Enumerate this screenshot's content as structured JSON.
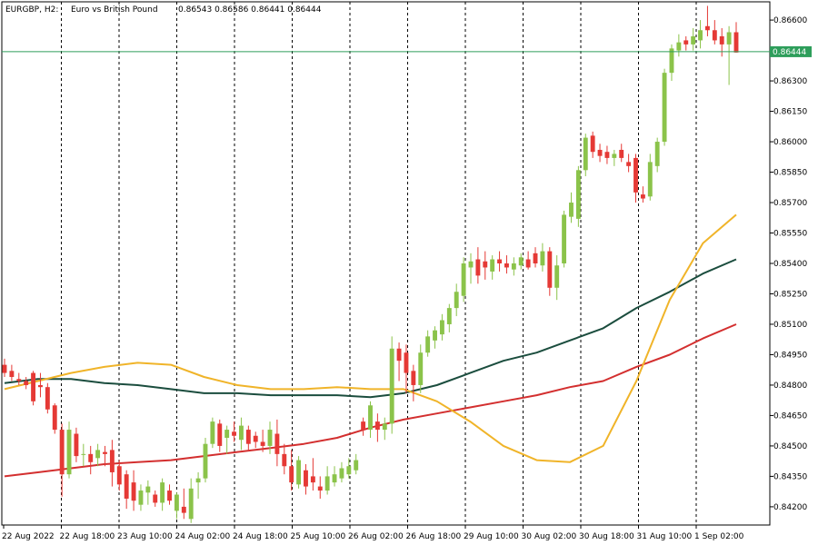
{
  "header": {
    "symbol": "EURGBP, H2:",
    "description": "Euro vs British Pound",
    "ohlc": "0.86543 0.86586 0.86441 0.86444"
  },
  "colors": {
    "bull": "#8bc34a",
    "bear": "#e53935",
    "ma_fast": "#f0b429",
    "ma_mid": "#1b4d3e",
    "ma_slow": "#d32f2f",
    "price_line": "#2e9e5b",
    "grid": "#000000"
  },
  "chart_data": {
    "type": "candlestick",
    "ylim": [
      0.8411,
      0.8669
    ],
    "y_ticks": [
      "0.86600",
      "0.86444",
      "0.86300",
      "0.86150",
      "0.86000",
      "0.85850",
      "0.85700",
      "0.85550",
      "0.85400",
      "0.85250",
      "0.85100",
      "0.84950",
      "0.84800",
      "0.84650",
      "0.84500",
      "0.84350",
      "0.84200"
    ],
    "current_price": "0.86444",
    "x_ticks": [
      "22 Aug 2022",
      "22 Aug 18:00",
      "23 Aug 10:00",
      "24 Aug 02:00",
      "24 Aug 18:00",
      "25 Aug 10:00",
      "26 Aug 02:00",
      "26 Aug 18:00",
      "29 Aug 10:00",
      "30 Aug 02:00",
      "30 Aug 18:00",
      "31 Aug 10:00",
      "1 Sep 02:00"
    ],
    "candles": [
      {
        "o": 0.849,
        "h": 0.8493,
        "l": 0.8484,
        "c": 0.8486
      },
      {
        "o": 0.8487,
        "h": 0.849,
        "l": 0.8482,
        "c": 0.8484
      },
      {
        "o": 0.8483,
        "h": 0.8486,
        "l": 0.848,
        "c": 0.8482
      },
      {
        "o": 0.8482,
        "h": 0.8484,
        "l": 0.8478,
        "c": 0.848
      },
      {
        "o": 0.8486,
        "h": 0.8487,
        "l": 0.847,
        "c": 0.8472
      },
      {
        "o": 0.848,
        "h": 0.8486,
        "l": 0.8474,
        "c": 0.8479
      },
      {
        "o": 0.8479,
        "h": 0.8481,
        "l": 0.8466,
        "c": 0.8468
      },
      {
        "o": 0.847,
        "h": 0.8471,
        "l": 0.8456,
        "c": 0.8458
      },
      {
        "o": 0.8458,
        "h": 0.8461,
        "l": 0.8425,
        "c": 0.8436
      },
      {
        "o": 0.8436,
        "h": 0.8462,
        "l": 0.8434,
        "c": 0.8458
      },
      {
        "o": 0.8456,
        "h": 0.8459,
        "l": 0.8442,
        "c": 0.8445
      },
      {
        "o": 0.8446,
        "h": 0.8451,
        "l": 0.844,
        "c": 0.8446
      },
      {
        "o": 0.8446,
        "h": 0.845,
        "l": 0.8436,
        "c": 0.8442
      },
      {
        "o": 0.8444,
        "h": 0.8451,
        "l": 0.844,
        "c": 0.8448
      },
      {
        "o": 0.8447,
        "h": 0.845,
        "l": 0.844,
        "c": 0.8446
      },
      {
        "o": 0.8448,
        "h": 0.8453,
        "l": 0.843,
        "c": 0.8437
      },
      {
        "o": 0.844,
        "h": 0.8443,
        "l": 0.8428,
        "c": 0.8431
      },
      {
        "o": 0.8436,
        "h": 0.8438,
        "l": 0.8419,
        "c": 0.8424
      },
      {
        "o": 0.8432,
        "h": 0.8438,
        "l": 0.8418,
        "c": 0.8423
      },
      {
        "o": 0.8421,
        "h": 0.8431,
        "l": 0.8418,
        "c": 0.8428
      },
      {
        "o": 0.8427,
        "h": 0.8433,
        "l": 0.8421,
        "c": 0.843
      },
      {
        "o": 0.8426,
        "h": 0.8428,
        "l": 0.842,
        "c": 0.8422
      },
      {
        "o": 0.8422,
        "h": 0.8434,
        "l": 0.8418,
        "c": 0.8432
      },
      {
        "o": 0.8428,
        "h": 0.8431,
        "l": 0.8421,
        "c": 0.8423
      },
      {
        "o": 0.8418,
        "h": 0.8427,
        "l": 0.8414,
        "c": 0.8426
      },
      {
        "o": 0.842,
        "h": 0.8429,
        "l": 0.8414,
        "c": 0.8417
      },
      {
        "o": 0.8414,
        "h": 0.8434,
        "l": 0.8412,
        "c": 0.8429
      },
      {
        "o": 0.8432,
        "h": 0.8437,
        "l": 0.8424,
        "c": 0.8434
      },
      {
        "o": 0.8434,
        "h": 0.8454,
        "l": 0.8432,
        "c": 0.8451
      },
      {
        "o": 0.8451,
        "h": 0.8464,
        "l": 0.8449,
        "c": 0.8462
      },
      {
        "o": 0.8461,
        "h": 0.8463,
        "l": 0.8447,
        "c": 0.845
      },
      {
        "o": 0.8454,
        "h": 0.846,
        "l": 0.8446,
        "c": 0.8458
      },
      {
        "o": 0.8457,
        "h": 0.8462,
        "l": 0.8452,
        "c": 0.8455
      },
      {
        "o": 0.8453,
        "h": 0.8464,
        "l": 0.8448,
        "c": 0.846
      },
      {
        "o": 0.8458,
        "h": 0.846,
        "l": 0.8448,
        "c": 0.8451
      },
      {
        "o": 0.8455,
        "h": 0.8457,
        "l": 0.8449,
        "c": 0.8452
      },
      {
        "o": 0.8452,
        "h": 0.8458,
        "l": 0.8447,
        "c": 0.845
      },
      {
        "o": 0.845,
        "h": 0.8462,
        "l": 0.8446,
        "c": 0.8458
      },
      {
        "o": 0.8456,
        "h": 0.8463,
        "l": 0.844,
        "c": 0.8446
      },
      {
        "o": 0.8446,
        "h": 0.8451,
        "l": 0.8436,
        "c": 0.844
      },
      {
        "o": 0.844,
        "h": 0.8448,
        "l": 0.8428,
        "c": 0.8432
      },
      {
        "o": 0.8431,
        "h": 0.8445,
        "l": 0.8429,
        "c": 0.8443
      },
      {
        "o": 0.8438,
        "h": 0.8441,
        "l": 0.8426,
        "c": 0.843
      },
      {
        "o": 0.8435,
        "h": 0.8444,
        "l": 0.8428,
        "c": 0.8432
      },
      {
        "o": 0.843,
        "h": 0.8435,
        "l": 0.8424,
        "c": 0.8428
      },
      {
        "o": 0.8428,
        "h": 0.844,
        "l": 0.8426,
        "c": 0.8435
      },
      {
        "o": 0.8432,
        "h": 0.844,
        "l": 0.843,
        "c": 0.8436
      },
      {
        "o": 0.8434,
        "h": 0.8442,
        "l": 0.8432,
        "c": 0.8439
      },
      {
        "o": 0.8436,
        "h": 0.8444,
        "l": 0.8434,
        "c": 0.844
      },
      {
        "o": 0.8438,
        "h": 0.8446,
        "l": 0.8436,
        "c": 0.8443
      },
      {
        "o": 0.8462,
        "h": 0.8464,
        "l": 0.8455,
        "c": 0.8458
      },
      {
        "o": 0.8458,
        "h": 0.8472,
        "l": 0.8454,
        "c": 0.847
      },
      {
        "o": 0.8462,
        "h": 0.8466,
        "l": 0.8452,
        "c": 0.8458
      },
      {
        "o": 0.8458,
        "h": 0.8464,
        "l": 0.8453,
        "c": 0.8461
      },
      {
        "o": 0.8461,
        "h": 0.8504,
        "l": 0.8456,
        "c": 0.8498
      },
      {
        "o": 0.8498,
        "h": 0.8501,
        "l": 0.8482,
        "c": 0.8492
      },
      {
        "o": 0.8496,
        "h": 0.85,
        "l": 0.8476,
        "c": 0.8486
      },
      {
        "o": 0.8487,
        "h": 0.849,
        "l": 0.8472,
        "c": 0.848
      },
      {
        "o": 0.848,
        "h": 0.85,
        "l": 0.8476,
        "c": 0.8496
      },
      {
        "o": 0.8496,
        "h": 0.8507,
        "l": 0.8494,
        "c": 0.8504
      },
      {
        "o": 0.8502,
        "h": 0.8509,
        "l": 0.8498,
        "c": 0.8507
      },
      {
        "o": 0.8505,
        "h": 0.8515,
        "l": 0.8502,
        "c": 0.8512
      },
      {
        "o": 0.851,
        "h": 0.852,
        "l": 0.8506,
        "c": 0.8518
      },
      {
        "o": 0.8518,
        "h": 0.853,
        "l": 0.8514,
        "c": 0.8526
      },
      {
        "o": 0.8524,
        "h": 0.8543,
        "l": 0.8521,
        "c": 0.854
      },
      {
        "o": 0.8538,
        "h": 0.8545,
        "l": 0.853,
        "c": 0.8541
      },
      {
        "o": 0.8542,
        "h": 0.8548,
        "l": 0.853,
        "c": 0.8534
      },
      {
        "o": 0.8541,
        "h": 0.8546,
        "l": 0.8532,
        "c": 0.8538
      },
      {
        "o": 0.8536,
        "h": 0.8544,
        "l": 0.8532,
        "c": 0.8542
      },
      {
        "o": 0.8542,
        "h": 0.8546,
        "l": 0.8536,
        "c": 0.854
      },
      {
        "o": 0.854,
        "h": 0.8544,
        "l": 0.8535,
        "c": 0.8538
      },
      {
        "o": 0.8537,
        "h": 0.8543,
        "l": 0.8534,
        "c": 0.854
      },
      {
        "o": 0.8539,
        "h": 0.8545,
        "l": 0.8537,
        "c": 0.8543
      },
      {
        "o": 0.8542,
        "h": 0.8546,
        "l": 0.8537,
        "c": 0.8538
      },
      {
        "o": 0.8545,
        "h": 0.8548,
        "l": 0.8538,
        "c": 0.854
      },
      {
        "o": 0.8539,
        "h": 0.855,
        "l": 0.8536,
        "c": 0.8546
      },
      {
        "o": 0.8546,
        "h": 0.8548,
        "l": 0.8524,
        "c": 0.8528
      },
      {
        "o": 0.8528,
        "h": 0.8544,
        "l": 0.8522,
        "c": 0.8539
      },
      {
        "o": 0.854,
        "h": 0.8566,
        "l": 0.8538,
        "c": 0.8564
      },
      {
        "o": 0.8563,
        "h": 0.8575,
        "l": 0.856,
        "c": 0.857
      },
      {
        "o": 0.8562,
        "h": 0.8588,
        "l": 0.8558,
        "c": 0.8586
      },
      {
        "o": 0.8586,
        "h": 0.8604,
        "l": 0.8583,
        "c": 0.8602
      },
      {
        "o": 0.8603,
        "h": 0.8605,
        "l": 0.8592,
        "c": 0.8595
      },
      {
        "o": 0.8596,
        "h": 0.8599,
        "l": 0.859,
        "c": 0.8593
      },
      {
        "o": 0.8595,
        "h": 0.8598,
        "l": 0.8589,
        "c": 0.8592
      },
      {
        "o": 0.8592,
        "h": 0.8596,
        "l": 0.8588,
        "c": 0.8594
      },
      {
        "o": 0.8596,
        "h": 0.8599,
        "l": 0.859,
        "c": 0.8592
      },
      {
        "o": 0.859,
        "h": 0.8594,
        "l": 0.8585,
        "c": 0.8588
      },
      {
        "o": 0.8592,
        "h": 0.8594,
        "l": 0.857,
        "c": 0.8575
      },
      {
        "o": 0.8574,
        "h": 0.8578,
        "l": 0.857,
        "c": 0.8572
      },
      {
        "o": 0.8573,
        "h": 0.8594,
        "l": 0.8571,
        "c": 0.859
      },
      {
        "o": 0.8588,
        "h": 0.8602,
        "l": 0.8585,
        "c": 0.86
      },
      {
        "o": 0.86,
        "h": 0.8636,
        "l": 0.8598,
        "c": 0.8634
      },
      {
        "o": 0.8634,
        "h": 0.8648,
        "l": 0.863,
        "c": 0.8646
      },
      {
        "o": 0.8645,
        "h": 0.8653,
        "l": 0.8642,
        "c": 0.8649
      },
      {
        "o": 0.865,
        "h": 0.8652,
        "l": 0.8645,
        "c": 0.8648
      },
      {
        "o": 0.8648,
        "h": 0.8656,
        "l": 0.8645,
        "c": 0.8652
      },
      {
        "o": 0.865,
        "h": 0.866,
        "l": 0.8646,
        "c": 0.8655
      },
      {
        "o": 0.8657,
        "h": 0.8667,
        "l": 0.8652,
        "c": 0.8655
      },
      {
        "o": 0.8655,
        "h": 0.866,
        "l": 0.8648,
        "c": 0.865
      },
      {
        "o": 0.8652,
        "h": 0.8656,
        "l": 0.8642,
        "c": 0.8648
      },
      {
        "o": 0.8648,
        "h": 0.8657,
        "l": 0.8628,
        "c": 0.8654
      },
      {
        "o": 0.8654,
        "h": 0.8659,
        "l": 0.8644,
        "c": 0.8644
      }
    ],
    "ma_fast": [
      0.8478,
      0.8482,
      0.8486,
      0.8489,
      0.8491,
      0.849,
      0.8484,
      0.848,
      0.8478,
      0.8478,
      0.8479,
      0.8478,
      0.8478,
      0.8472,
      0.8462,
      0.845,
      0.8443,
      0.8442,
      0.845,
      0.8482,
      0.8522,
      0.855,
      0.8564
    ],
    "ma_mid": [
      0.8481,
      0.8483,
      0.8483,
      0.8481,
      0.848,
      0.8478,
      0.8476,
      0.8476,
      0.8475,
      0.8475,
      0.8475,
      0.8474,
      0.8476,
      0.848,
      0.8486,
      0.8492,
      0.8496,
      0.8502,
      0.8508,
      0.8518,
      0.8526,
      0.8535,
      0.8542
    ],
    "ma_slow": [
      0.8435,
      0.8437,
      0.8439,
      0.8441,
      0.8442,
      0.8443,
      0.8445,
      0.8447,
      0.8449,
      0.8451,
      0.8454,
      0.8459,
      0.8463,
      0.8466,
      0.8469,
      0.8472,
      0.8475,
      0.8479,
      0.8482,
      0.8489,
      0.8495,
      0.8503,
      0.851
    ]
  }
}
